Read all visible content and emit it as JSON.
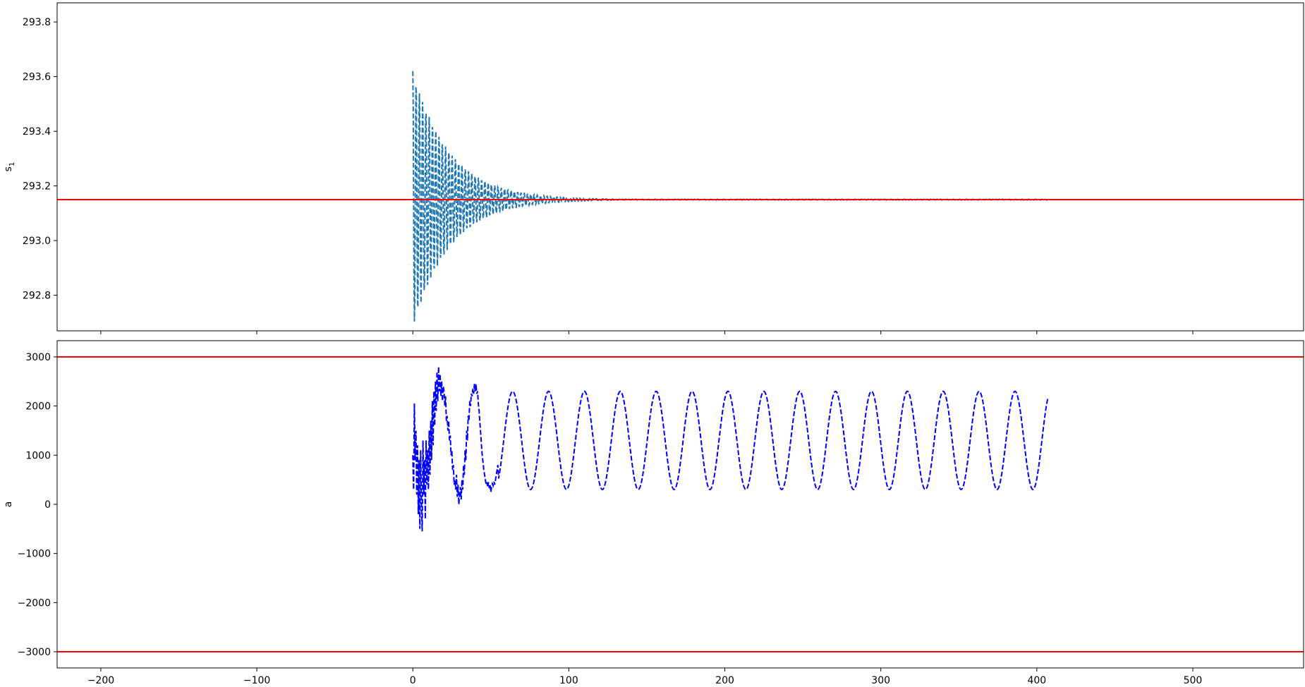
{
  "chart_data": [
    {
      "type": "line",
      "ylabel": "s",
      "ylabel_subscript": "1",
      "xlim": [
        -228,
        571
      ],
      "ylim": [
        292.67,
        293.87
      ],
      "xticks": [
        -200,
        -100,
        0,
        100,
        200,
        300,
        400,
        500
      ],
      "show_xtick_labels": false,
      "yticks": [
        292.8,
        293.0,
        293.2,
        293.4,
        293.6,
        293.8
      ],
      "ytick_labels": [
        "292.8",
        "293.0",
        "293.2",
        "293.4",
        "293.6",
        "293.8"
      ],
      "grid": false,
      "reference_lines": [
        {
          "y": 293.15,
          "color": "#ff0000"
        }
      ],
      "series": [
        {
          "color": "#1f77b4",
          "linestyle": "dashed",
          "generator": {
            "kind": "damped_oscillation",
            "x_start": 0,
            "x_end": 407,
            "step": 0.25,
            "center": 293.15,
            "initial_amplitude": 0.47,
            "decay_per_unit": 0.042,
            "period": 2.1,
            "floor_amplitude": 0.0015
          }
        }
      ]
    },
    {
      "type": "line",
      "ylabel": "a",
      "xlim": [
        -228,
        571
      ],
      "ylim": [
        -3330,
        3330
      ],
      "xticks": [
        -200,
        -100,
        0,
        100,
        200,
        300,
        400,
        500
      ],
      "xtick_labels": [
        "−200",
        "−100",
        "0",
        "100",
        "200",
        "300",
        "400",
        "500"
      ],
      "yticks": [
        -3000,
        -2000,
        -1000,
        0,
        1000,
        2000,
        3000
      ],
      "ytick_labels": [
        "−3000",
        "−2000",
        "−1000",
        "0",
        "1000",
        "2000",
        "3000"
      ],
      "grid": false,
      "reference_lines": [
        {
          "y": 3000,
          "color": "#ff0000"
        },
        {
          "y": -3000,
          "color": "#ff0000"
        }
      ],
      "series": [
        {
          "color": "#0000ff",
          "linestyle": "dashed",
          "generator": {
            "kind": "settling_sine",
            "x_start": 0,
            "x_end": 407,
            "step": 0.5,
            "steady_mean": 1300,
            "steady_amplitude": 1000,
            "period": 23,
            "phase_peak_x": 64,
            "transient_end_x": 55
          },
          "transient_points": [
            [
              0,
              1000
            ],
            [
              0.5,
              300
            ],
            [
              1,
              2050
            ],
            [
              1.5,
              900
            ],
            [
              2,
              1500
            ],
            [
              2.5,
              200
            ],
            [
              3,
              1200
            ],
            [
              3.5,
              -200
            ],
            [
              4,
              900
            ],
            [
              4.5,
              -500
            ],
            [
              5,
              1100
            ],
            [
              5.5,
              100
            ],
            [
              6,
              -550
            ],
            [
              6.5,
              1300
            ],
            [
              7,
              200
            ],
            [
              7.5,
              900
            ],
            [
              8,
              -300
            ],
            [
              8.5,
              1300
            ],
            [
              9,
              400
            ],
            [
              9.5,
              1100
            ],
            [
              10,
              300
            ],
            [
              10.5,
              1500
            ],
            [
              11,
              600
            ],
            [
              11.5,
              1700
            ],
            [
              12,
              900
            ],
            [
              12.5,
              2100
            ],
            [
              13,
              1200
            ],
            [
              13.5,
              2300
            ],
            [
              14,
              1600
            ],
            [
              14.5,
              2500
            ],
            [
              15,
              1900
            ],
            [
              15.5,
              2700
            ],
            [
              16,
              2100
            ],
            [
              16.5,
              2800
            ],
            [
              17,
              2300
            ],
            [
              17.5,
              2650
            ],
            [
              18,
              2200
            ],
            [
              18.5,
              2500
            ],
            [
              19,
              2100
            ],
            [
              19.5,
              2400
            ],
            [
              20,
              2300
            ],
            [
              20.5,
              2000
            ],
            [
              21,
              2200
            ],
            [
              21.5,
              1700
            ],
            [
              22,
              1800
            ],
            [
              22.5,
              1500
            ],
            [
              23,
              1700
            ],
            [
              23.5,
              1300
            ],
            [
              24,
              1400
            ],
            [
              24.5,
              1000
            ],
            [
              25,
              1100
            ],
            [
              25.5,
              700
            ],
            [
              26,
              800
            ],
            [
              26.5,
              400
            ],
            [
              27,
              500
            ],
            [
              27.5,
              300
            ],
            [
              28,
              600
            ],
            [
              28.5,
              150
            ],
            [
              29,
              400
            ],
            [
              29.5,
              0
            ],
            [
              30,
              200
            ],
            [
              30.5,
              350
            ],
            [
              31,
              100
            ],
            [
              31.5,
              500
            ],
            [
              32,
              300
            ],
            [
              32.5,
              800
            ],
            [
              33,
              600
            ],
            [
              33.5,
              1100
            ],
            [
              34,
              900
            ],
            [
              34.5,
              1500
            ],
            [
              35,
              1300
            ],
            [
              35.5,
              1800
            ],
            [
              36,
              1700
            ],
            [
              36.5,
              2100
            ],
            [
              37,
              2000
            ],
            [
              37.5,
              2250
            ],
            [
              38,
              2200
            ],
            [
              38.5,
              2350
            ],
            [
              39,
              2250
            ],
            [
              39.5,
              2450
            ],
            [
              40,
              2300
            ],
            [
              40.5,
              2450
            ],
            [
              41,
              2250
            ],
            [
              41.5,
              2300
            ],
            [
              42,
              2050
            ],
            [
              42.5,
              1900
            ],
            [
              43,
              1650
            ],
            [
              43.5,
              1450
            ],
            [
              44,
              1200
            ],
            [
              44.5,
              1000
            ],
            [
              45,
              850
            ],
            [
              45.5,
              700
            ],
            [
              46,
              600
            ],
            [
              46.5,
              500
            ],
            [
              47,
              400
            ],
            [
              47.5,
              450
            ],
            [
              48,
              350
            ],
            [
              48.5,
              450
            ],
            [
              49,
              330
            ],
            [
              49.5,
              400
            ],
            [
              50,
              250
            ],
            [
              50.5,
              350
            ],
            [
              51,
              420
            ],
            [
              51.5,
              380
            ],
            [
              52,
              460
            ],
            [
              52.5,
              400
            ],
            [
              53,
              500
            ],
            [
              53.5,
              600
            ],
            [
              54,
              700
            ],
            [
              54.5,
              800
            ]
          ]
        }
      ]
    }
  ]
}
